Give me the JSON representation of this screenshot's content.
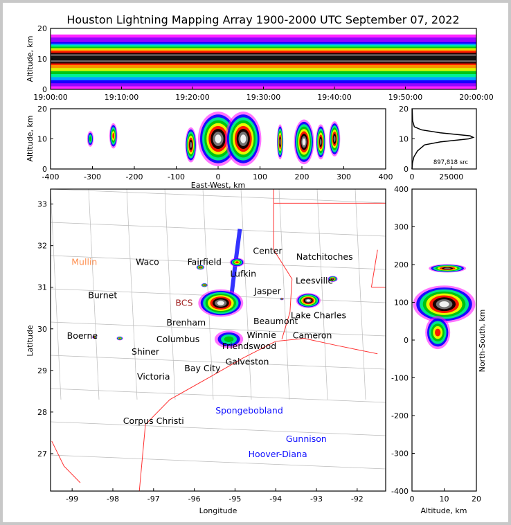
{
  "chart_data": {
    "type": "scatter",
    "title": "Houston Lightning Mapping Array 1900-2000 UTC September 07, 2022",
    "colors": {
      "density": [
        "#ff00ff",
        "#8000ff",
        "#0000ff",
        "#00c0ff",
        "#00ff80",
        "#00c000",
        "#ffff00",
        "#ff8000",
        "#ff0000",
        "#000000",
        "#808080",
        "#ffffff"
      ],
      "state_border": "#ff3030",
      "county": "#bbbbbb",
      "city": "#000000",
      "network_label": "#1010ff",
      "mullin": "#ff9050"
    },
    "time_altitude": {
      "ylabel": "Altitude, km",
      "ylim": [
        0,
        20
      ],
      "yticks": [
        "0",
        "10",
        "20"
      ],
      "xticks": [
        "19:00:00",
        "19:10:00",
        "19:20:00",
        "19:30:00",
        "19:40:00",
        "19:50:00",
        "20:00:00"
      ],
      "core_altitude_km": 10
    },
    "ew_altitude": {
      "xlabel": "East-West, km",
      "ylabel": "Altitude, km",
      "xlim": [
        -400,
        400
      ],
      "ylim": [
        0,
        20
      ],
      "xticks": [
        "-400",
        "-300",
        "-200",
        "-100",
        "0",
        "100",
        "200",
        "300",
        "400"
      ],
      "yticks": [
        "0",
        "10",
        "20"
      ],
      "cells": [
        {
          "x": -305,
          "z": 10,
          "w": 8,
          "n": 1
        },
        {
          "x": -250,
          "z": 11,
          "w": 10,
          "n": 2
        },
        {
          "x": -65,
          "z": 8,
          "w": 14,
          "n": 3
        },
        {
          "x": 0,
          "z": 10,
          "w": 50,
          "n": 5
        },
        {
          "x": 60,
          "z": 10,
          "w": 45,
          "n": 5
        },
        {
          "x": 148,
          "z": 9,
          "w": 8,
          "n": 3
        },
        {
          "x": 205,
          "z": 9,
          "w": 25,
          "n": 4
        },
        {
          "x": 245,
          "z": 9,
          "w": 12,
          "n": 3
        },
        {
          "x": 278,
          "z": 10,
          "w": 14,
          "n": 3
        }
      ]
    },
    "histogram": {
      "annotation": "897,818 src",
      "xticks": [
        "0",
        "25000"
      ],
      "yticks": [
        "0",
        "10",
        "20"
      ],
      "xlim": [
        0,
        41000
      ],
      "ylim": [
        0,
        20
      ],
      "profile": [
        [
          0,
          0
        ],
        [
          2,
          300
        ],
        [
          4,
          1200
        ],
        [
          6,
          3500
        ],
        [
          8,
          8000
        ],
        [
          9,
          18000
        ],
        [
          10,
          36000
        ],
        [
          10.5,
          39000
        ],
        [
          11,
          37000
        ],
        [
          12,
          18000
        ],
        [
          13,
          6000
        ],
        [
          14,
          1500
        ],
        [
          16,
          400
        ],
        [
          20,
          100
        ]
      ]
    },
    "plan_view": {
      "xlabel": "Longitude",
      "ylabel": "Latitude",
      "xlim": [
        -99.53,
        -91.3
      ],
      "ylim": [
        26.1,
        33.36
      ],
      "xticks": [
        "-99",
        "-98",
        "-97",
        "-96",
        "-95",
        "-94",
        "-93",
        "-92"
      ],
      "yticks": [
        "27",
        "28",
        "29",
        "30",
        "31",
        "32",
        "33"
      ],
      "cells": [
        {
          "lon": -95.35,
          "lat": 30.62,
          "r": 0.55,
          "n": 5
        },
        {
          "lon": -94.95,
          "lat": 31.6,
          "r": 0.18,
          "n": 2
        },
        {
          "lon": -95.15,
          "lat": 29.75,
          "r": 0.35,
          "n": 1
        },
        {
          "lon": -93.2,
          "lat": 30.68,
          "r": 0.3,
          "n": 4
        },
        {
          "lon": -92.6,
          "lat": 31.2,
          "r": 0.12,
          "n": 3
        },
        {
          "lon": -95.85,
          "lat": 31.48,
          "r": 0.1,
          "n": 3
        },
        {
          "lon": -95.75,
          "lat": 31.05,
          "r": 0.08,
          "n": 3
        },
        {
          "lon": -93.85,
          "lat": 30.72,
          "r": 0.05,
          "n": 2
        },
        {
          "lon": -97.83,
          "lat": 29.77,
          "r": 0.08,
          "n": 2
        },
        {
          "lon": -98.45,
          "lat": 29.8,
          "r": 0.06,
          "n": 2
        }
      ],
      "cities": [
        {
          "name": "Mullin",
          "lon": -98.7,
          "lat": 31.6,
          "kind": "mullin"
        },
        {
          "name": "Waco",
          "lon": -97.15,
          "lat": 31.6,
          "kind": "city"
        },
        {
          "name": "Burnet",
          "lon": -98.25,
          "lat": 30.8,
          "kind": "city"
        },
        {
          "name": "Boerne",
          "lon": -98.75,
          "lat": 29.83,
          "kind": "city"
        },
        {
          "name": "Shiner",
          "lon": -97.2,
          "lat": 29.45,
          "kind": "city"
        },
        {
          "name": "Victoria",
          "lon": -97.0,
          "lat": 28.85,
          "kind": "city"
        },
        {
          "name": "Corpus Christi",
          "lon": -97.0,
          "lat": 27.78,
          "kind": "city"
        },
        {
          "name": "Fairfield",
          "lon": -95.75,
          "lat": 31.6,
          "kind": "city"
        },
        {
          "name": "Lufkin",
          "lon": -94.8,
          "lat": 31.4,
          "kind": "city"
        },
        {
          "name": "BCS",
          "lon": -96.25,
          "lat": 30.62,
          "kind": "bcs"
        },
        {
          "name": "Brenham",
          "lon": -96.2,
          "lat": 30.15,
          "kind": "city"
        },
        {
          "name": "Columbus",
          "lon": -96.4,
          "lat": 29.75,
          "kind": "city"
        },
        {
          "name": "Bay City",
          "lon": -95.8,
          "lat": 29.05,
          "kind": "city"
        },
        {
          "name": "Center",
          "lon": -94.2,
          "lat": 31.87,
          "kind": "city"
        },
        {
          "name": "Natchitoches",
          "lon": -92.8,
          "lat": 31.73,
          "kind": "city"
        },
        {
          "name": "Leesville",
          "lon": -93.05,
          "lat": 31.15,
          "kind": "city"
        },
        {
          "name": "Jasper",
          "lon": -94.2,
          "lat": 30.9,
          "kind": "city"
        },
        {
          "name": "Lake Charles",
          "lon": -92.95,
          "lat": 30.32,
          "kind": "city"
        },
        {
          "name": "Beaumont",
          "lon": -94.0,
          "lat": 30.1,
          "kind": "city"
        },
        {
          "name": "Winnie",
          "lon": -94.35,
          "lat": 29.9,
          "kind": "city"
        },
        {
          "name": "Cameron",
          "lon": -93.1,
          "lat": 29.84,
          "kind": "city"
        },
        {
          "name": "Friendswood",
          "lon": -94.65,
          "lat": 29.63,
          "kind": "city"
        },
        {
          "name": "Galveston",
          "lon": -94.7,
          "lat": 29.37,
          "kind": "city"
        },
        {
          "name": "Spongebobland",
          "lon": -94.65,
          "lat": 28.03,
          "kind": "network"
        },
        {
          "name": "Gunnison",
          "lon": -93.25,
          "lat": 27.35,
          "kind": "network"
        },
        {
          "name": "Hoover-Diana",
          "lon": -93.95,
          "lat": 26.98,
          "kind": "network"
        }
      ]
    },
    "ns_altitude": {
      "xlabel": "Altitude, km",
      "ylabel": "North-South, km",
      "xlim": [
        0,
        20
      ],
      "ylim": [
        -400,
        400
      ],
      "xticks": [
        "0",
        "10",
        "20"
      ],
      "yticks": [
        "-400",
        "-300",
        "-200",
        "-100",
        "0",
        "100",
        "200",
        "300",
        "400"
      ],
      "cells": [
        {
          "y": 95,
          "z": 10,
          "h": 45,
          "n": 5
        },
        {
          "y": 190,
          "z": 11,
          "h": 10,
          "n": 3
        },
        {
          "y": 20,
          "z": 8,
          "h": 40,
          "n": 2
        }
      ]
    }
  }
}
